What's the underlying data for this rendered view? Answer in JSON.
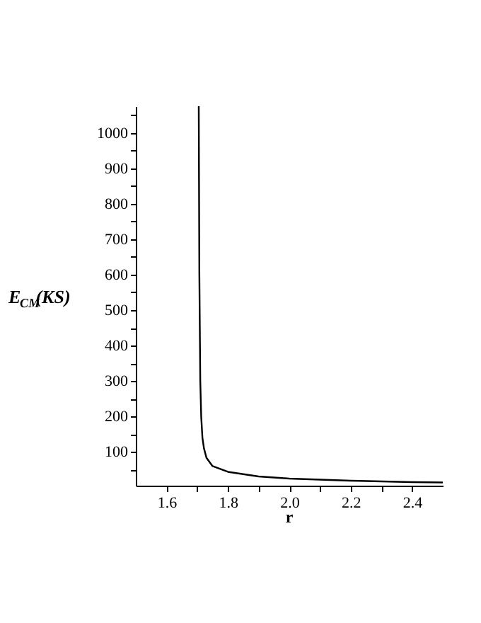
{
  "chart_data": {
    "type": "line",
    "xlabel": "r",
    "ylabel": "E$_{CM}$(KS)",
    "series": [
      {
        "color": "#000000",
        "x": [
          1.705,
          1.707,
          1.71,
          1.713,
          1.717,
          1.722,
          1.73,
          1.75,
          1.8,
          1.9,
          2.0,
          2.2,
          2.4,
          2.5
        ],
        "values": [
          1075,
          600,
          300,
          200,
          140,
          110,
          84,
          60,
          44,
          31,
          25,
          19,
          15,
          14
        ]
      }
    ],
    "xlim": [
      1.5,
      2.5
    ],
    "ylim": [
      5,
      1075
    ],
    "xticks": [
      1.6,
      {
        "value": 1.7,
        "label": null
      },
      1.8,
      {
        "value": 1.9,
        "label": null
      },
      {
        "value": 2.0,
        "label": "2.0"
      },
      {
        "value": 2.1,
        "label": null
      },
      2.2,
      {
        "value": 2.3,
        "label": null
      },
      2.4
    ],
    "yticks": [
      {
        "value": 50,
        "label": null
      },
      100,
      {
        "value": 150,
        "label": null
      },
      200,
      {
        "value": 250,
        "label": null
      },
      300,
      {
        "value": 350,
        "label": null
      },
      400,
      {
        "value": 450,
        "label": null
      },
      500,
      {
        "value": 550,
        "label": null
      },
      600,
      {
        "value": 650,
        "label": null
      },
      700,
      {
        "value": 750,
        "label": null
      },
      800,
      {
        "value": 850,
        "label": null
      },
      900,
      {
        "value": 950,
        "label": null
      },
      1000,
      {
        "value": 1050,
        "label": null
      }
    ],
    "grid": false,
    "legend": false,
    "marker": "none",
    "line_style": "solid"
  }
}
